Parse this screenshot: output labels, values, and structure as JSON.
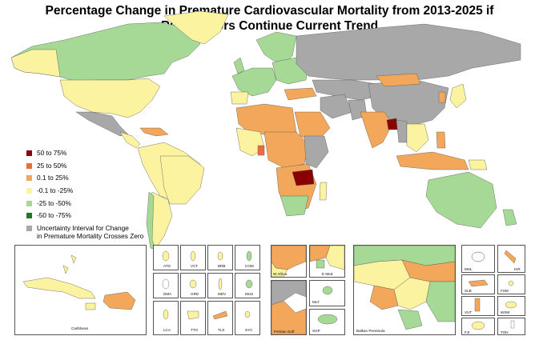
{
  "title_line1": "Percentage Change in Premature Cardiovascular Mortality from 2013-2025 if",
  "title_line2": "Risk Factors Continue Current Trend",
  "colors": {
    "c50_75": "#8b0000",
    "c25_50": "#ef6a3d",
    "c0_25": "#f2a75b",
    "cn0_25": "#fbf3a0",
    "cn25_50": "#a6d995",
    "cn50_75": "#1f7a1f",
    "grey": "#a8a8a8",
    "ocean": "#ffffff",
    "border": "#555555"
  },
  "legend": [
    {
      "label": "50 to 75%",
      "color": "#8b0000"
    },
    {
      "label": "25 to 50%",
      "color": "#ef6a3d"
    },
    {
      "label": "0.1 to 25%",
      "color": "#f2a75b"
    },
    {
      "label": "-0.1 to -25%",
      "color": "#fbf3a0"
    },
    {
      "label": "-25 to -50%",
      "color": "#a6d995"
    },
    {
      "label": "-50 to -75%",
      "color": "#1f7a1f"
    },
    {
      "label": "Uncertainty Interval for Change",
      "label2": "in Premature Mortality Crosses Zero",
      "color": "#a8a8a8"
    }
  ],
  "insets": {
    "caribbean": "Caribbean",
    "small": [
      "ATG",
      "VCT",
      "BRB",
      "COM",
      "DMA",
      "GRD",
      "MDV",
      "MUS",
      "LCA",
      "TTO",
      "TLS",
      "SYC"
    ],
    "w_africa": "W Africa",
    "e_med": "E Med",
    "persian_gulf": "Persian Gulf",
    "mlt": "MLT",
    "sgp": "SGP",
    "balkan": "Balkan Peninsula",
    "pacific": [
      "MHL",
      "KIR",
      "SLB",
      "FSM",
      "VUT",
      "WSM",
      "FJI",
      "TON"
    ]
  }
}
